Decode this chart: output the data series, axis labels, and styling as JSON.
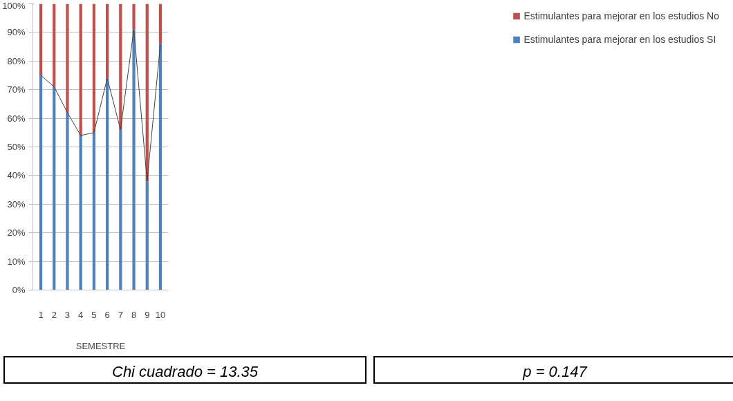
{
  "chart_data": {
    "type": "bar",
    "stacked": true,
    "xlabel": "SEMESTRE",
    "categories": [
      "1",
      "2",
      "3",
      "4",
      "5",
      "6",
      "7",
      "8",
      "9",
      "10"
    ],
    "series": [
      {
        "name": "Estimulantes para mejorar en los estudios SI",
        "color": "#4f81bd",
        "values": [
          75,
          71,
          62,
          54,
          55,
          74,
          56,
          91,
          38,
          86
        ]
      },
      {
        "name": "Estimulantes para mejorar en los estudios No",
        "color": "#c0504d",
        "values": [
          25,
          29,
          38,
          46,
          45,
          26,
          44,
          9,
          62,
          14
        ]
      },
      {
        "type": "line",
        "color": "#404040",
        "x": [
          "1",
          "2",
          "3",
          "4",
          "5",
          "6",
          "7",
          "8",
          "9",
          "10"
        ],
        "values": [
          75,
          71,
          62,
          54,
          55,
          74,
          56,
          91,
          38,
          86
        ]
      }
    ],
    "ylim": [
      0,
      100
    ],
    "yticks": [
      {
        "value": 0,
        "label": "0%"
      },
      {
        "value": 10,
        "label": "10%"
      },
      {
        "value": 20,
        "label": "20%"
      },
      {
        "value": 30,
        "label": "30%"
      },
      {
        "value": 40,
        "label": "40%"
      },
      {
        "value": 50,
        "label": "50%"
      },
      {
        "value": 60,
        "label": "60%"
      },
      {
        "value": 70,
        "label": "70%"
      },
      {
        "value": 80,
        "label": "80%"
      },
      {
        "value": 90,
        "label": "90%"
      },
      {
        "value": 100,
        "label": "100%"
      }
    ],
    "grid": "y",
    "legend": "right",
    "annotations": [
      "Chi cuadrado = 13.35",
      "p = 0.147"
    ]
  }
}
